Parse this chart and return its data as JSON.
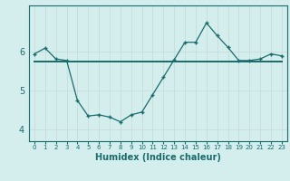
{
  "x": [
    0,
    1,
    2,
    3,
    4,
    5,
    6,
    7,
    8,
    9,
    10,
    11,
    12,
    13,
    14,
    15,
    16,
    17,
    18,
    19,
    20,
    21,
    22,
    23
  ],
  "y_humidex": [
    5.95,
    6.1,
    5.82,
    5.78,
    4.75,
    4.35,
    4.38,
    4.32,
    4.2,
    4.38,
    4.45,
    4.9,
    5.35,
    5.8,
    6.25,
    6.25,
    6.75,
    6.42,
    6.12,
    5.78,
    5.78,
    5.82,
    5.95,
    5.9
  ],
  "y_trend": [
    5.76,
    5.76,
    5.76,
    5.76,
    5.76,
    5.76,
    5.76,
    5.76,
    5.76,
    5.76,
    5.76,
    5.76,
    5.76,
    5.76,
    5.76,
    5.76,
    5.76,
    5.76,
    5.76,
    5.76,
    5.76,
    5.76,
    5.76,
    5.76
  ],
  "line_color": "#1a6b6b",
  "bg_color": "#d4eeee",
  "xlabel": "Humidex (Indice chaleur)",
  "yticks": [
    4,
    5,
    6
  ],
  "ylim": [
    3.7,
    7.2
  ],
  "xlim": [
    -0.5,
    23.5
  ],
  "xlabel_fontsize": 7,
  "ytick_fontsize": 7,
  "xtick_fontsize": 5
}
